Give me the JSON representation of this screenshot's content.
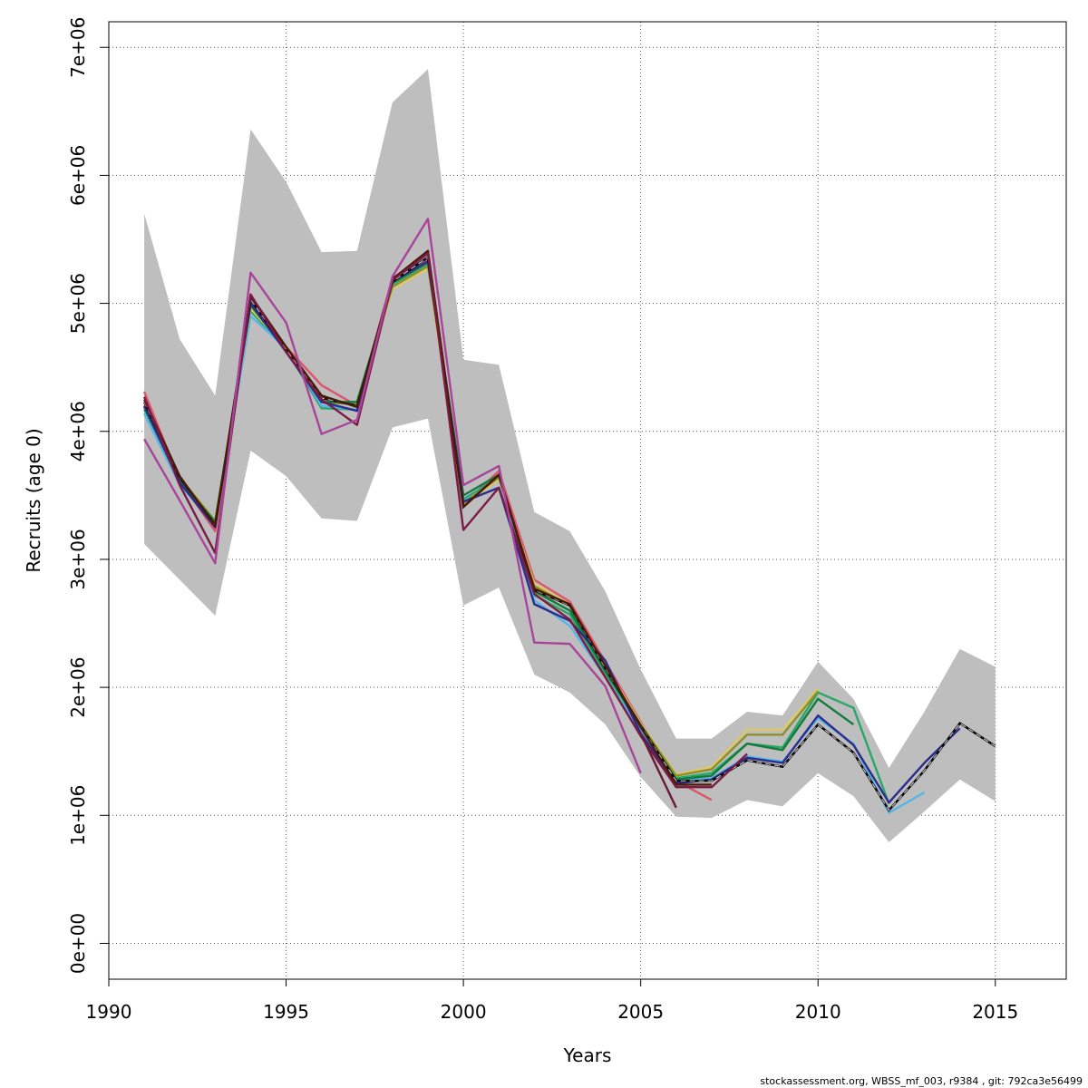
{
  "chart_data": {
    "type": "line",
    "xlabel": "Years",
    "ylabel": "Recruits (age 0)",
    "xlim": [
      1990,
      2017
    ],
    "ylim": [
      -280000,
      7200000
    ],
    "x_ticks": [
      1990,
      1995,
      2000,
      2005,
      2010,
      2015
    ],
    "x_tick_labels": [
      "1990",
      "1995",
      "2000",
      "2005",
      "2010",
      "2015"
    ],
    "y_ticks": [
      0,
      1000000,
      2000000,
      3000000,
      4000000,
      5000000,
      6000000,
      7000000
    ],
    "y_tick_labels": [
      "0e+00",
      "1e+06",
      "2e+06",
      "3e+06",
      "4e+06",
      "5e+06",
      "6e+06",
      "7e+06"
    ],
    "grid": true,
    "band": {
      "color": "#bebebe",
      "x": [
        1991,
        1992,
        1993,
        1994,
        1995,
        1996,
        1997,
        1998,
        1999,
        2000,
        2001,
        2002,
        2003,
        2004,
        2005,
        2006,
        2007,
        2008,
        2009,
        2010,
        2011,
        2012,
        2013,
        2014,
        2015
      ],
      "upper": [
        5700000,
        4720000,
        4280000,
        6360000,
        5950000,
        5400000,
        5410000,
        6570000,
        6830000,
        4560000,
        4520000,
        3370000,
        3220000,
        2750000,
        2140000,
        1600000,
        1600000,
        1810000,
        1780000,
        2200000,
        1910000,
        1370000,
        1810000,
        2300000,
        2160000
      ],
      "lower": [
        3120000,
        2840000,
        2560000,
        3850000,
        3650000,
        3320000,
        3300000,
        4030000,
        4100000,
        2640000,
        2780000,
        2100000,
        1960000,
        1710000,
        1300000,
        990000,
        980000,
        1120000,
        1070000,
        1330000,
        1150000,
        790000,
        1030000,
        1280000,
        1110000
      ]
    },
    "series": [
      {
        "color": "#df536b",
        "x": [
          1991,
          1992,
          1993,
          1994,
          1995,
          1996,
          1997,
          1998,
          1999,
          2000,
          2001,
          2002,
          2003,
          2004,
          2005,
          2006,
          2007
        ],
        "values": [
          4310000,
          3620000,
          3220000,
          5030000,
          4660000,
          4360000,
          4200000,
          5200000,
          5350000,
          3430000,
          3690000,
          2840000,
          2670000,
          2200000,
          1730000,
          1270000,
          1120000
        ]
      },
      {
        "color": "#28a868",
        "x": [
          1991,
          1992,
          1993,
          1994,
          1995,
          1996,
          1997,
          1998,
          1999,
          2000,
          2001,
          2002,
          2003,
          2004,
          2005,
          2006,
          2007,
          2008,
          2009,
          2010,
          2011,
          2012
        ],
        "values": [
          4170000,
          3600000,
          3280000,
          4940000,
          4640000,
          4180000,
          4170000,
          5150000,
          5310000,
          3470000,
          3640000,
          2720000,
          2570000,
          2110000,
          1680000,
          1290000,
          1330000,
          1560000,
          1530000,
          1960000,
          1840000,
          1090000
        ]
      },
      {
        "color": "#57b5e8",
        "x": [
          1991,
          1992,
          1993,
          1994,
          1995,
          1996,
          1997,
          1998,
          1999,
          2000,
          2001,
          2002,
          2003,
          2004,
          2005,
          2006,
          2007,
          2008,
          2009,
          2010,
          2011,
          2012,
          2013
        ],
        "values": [
          4140000,
          3580000,
          3290000,
          4900000,
          4650000,
          4200000,
          4170000,
          5160000,
          5320000,
          3450000,
          3630000,
          2680000,
          2480000,
          2080000,
          1660000,
          1270000,
          1290000,
          1460000,
          1420000,
          1760000,
          1560000,
          1020000,
          1180000
        ]
      },
      {
        "color": "#dac86a",
        "x": [
          1991,
          1992,
          1993,
          1994,
          1995,
          1996,
          1997,
          1998,
          1999,
          2000,
          2001,
          2002,
          2003,
          2004,
          2005,
          2006,
          2007,
          2008,
          2009,
          2010
        ],
        "values": [
          4220000,
          3640000,
          3300000,
          4960000,
          4650000,
          4240000,
          4220000,
          5110000,
          5270000,
          3420000,
          3630000,
          2810000,
          2650000,
          2170000,
          1720000,
          1320000,
          1380000,
          1670000,
          1670000,
          1990000
        ]
      },
      {
        "color": "#8e8f28",
        "x": [
          1991,
          1992,
          1993,
          1994,
          1995,
          1996,
          1997,
          1998,
          1999,
          2000,
          2001,
          2002,
          2003,
          2004,
          2005,
          2006,
          2007,
          2008,
          2009,
          2010
        ],
        "values": [
          4200000,
          3640000,
          3300000,
          4980000,
          4640000,
          4230000,
          4210000,
          5130000,
          5290000,
          3440000,
          3640000,
          2790000,
          2640000,
          2160000,
          1710000,
          1310000,
          1360000,
          1630000,
          1630000,
          1970000
        ]
      },
      {
        "color": "#127a3c",
        "x": [
          1991,
          1992,
          1993,
          1994,
          1995,
          1996,
          1997,
          1998,
          1999,
          2000,
          2001,
          2002,
          2003,
          2004,
          2005,
          2006,
          2007,
          2008,
          2009,
          2010,
          2011
        ],
        "values": [
          4190000,
          3620000,
          3290000,
          4990000,
          4640000,
          4230000,
          4230000,
          5160000,
          5320000,
          3500000,
          3660000,
          2750000,
          2600000,
          2130000,
          1700000,
          1280000,
          1310000,
          1560000,
          1510000,
          1910000,
          1710000
        ]
      },
      {
        "color": "#2c2c8c",
        "x": [
          1991,
          1992,
          1993,
          1994,
          1995,
          1996,
          1997,
          1998,
          1999,
          2000,
          2001,
          2002,
          2003,
          2004,
          2005,
          2006,
          2007,
          2008,
          2009,
          2010,
          2011,
          2012,
          2013,
          2014
        ],
        "values": [
          4200000,
          3600000,
          3250000,
          5000000,
          4620000,
          4230000,
          4160000,
          5170000,
          5330000,
          3450000,
          3560000,
          2650000,
          2520000,
          2210000,
          1640000,
          1250000,
          1280000,
          1450000,
          1410000,
          1780000,
          1550000,
          1100000,
          1410000,
          1680000
        ]
      },
      {
        "color": "#222222",
        "dash": "6 4",
        "x": [
          1991,
          1992,
          1993,
          1994,
          1995,
          1996,
          1997,
          1998,
          1999,
          2000,
          2001,
          2002,
          2003,
          2004,
          2005,
          2006,
          2007,
          2008,
          2009,
          2010,
          2011,
          2012,
          2013,
          2014,
          2015
        ],
        "values": [
          4230000,
          3640000,
          3270000,
          5030000,
          4640000,
          4260000,
          4200000,
          5170000,
          5360000,
          3410000,
          3660000,
          2760000,
          2640000,
          2150000,
          1700000,
          1270000,
          1270000,
          1430000,
          1380000,
          1710000,
          1490000,
          1040000,
          1350000,
          1720000,
          1540000
        ]
      },
      {
        "color": "#4a1a08",
        "x": [
          1991,
          1992,
          1993,
          1994,
          1995,
          1996,
          1997,
          1998,
          1999,
          2000,
          2001,
          2002,
          2003,
          2004,
          2005,
          2006,
          2007
        ],
        "values": [
          4250000,
          3650000,
          3260000,
          5060000,
          4660000,
          4280000,
          4190000,
          5190000,
          5410000,
          3410000,
          3660000,
          2770000,
          2650000,
          2170000,
          1690000,
          1240000,
          1240000
        ]
      },
      {
        "color": "#7a1a45",
        "x": [
          1991,
          1992,
          1993,
          1994,
          1995,
          1996,
          1997,
          1998,
          1999,
          2000,
          2001,
          2002,
          2003,
          2004,
          2005,
          2006,
          2007,
          2008
        ],
        "values": [
          4270000,
          3580000,
          3050000,
          5070000,
          4620000,
          4250000,
          4050000,
          5180000,
          5390000,
          3230000,
          3560000,
          2730000,
          2530000,
          2080000,
          1620000,
          1220000,
          1220000,
          1480000
        ]
      },
      {
        "color": "#a8459a",
        "x": [
          1991,
          1992,
          1993,
          1994,
          1995,
          1996,
          1997,
          1998,
          1999,
          2000,
          2001,
          2002,
          2003,
          2004,
          2005
        ],
        "values": [
          3940000,
          3460000,
          2970000,
          5240000,
          4850000,
          3980000,
          4090000,
          5210000,
          5660000,
          3580000,
          3730000,
          2350000,
          2340000,
          2010000,
          1330000
        ]
      },
      {
        "color": "#6b1a35",
        "x": [
          2005,
          2006
        ],
        "values": [
          1640000,
          1060000
        ]
      }
    ]
  },
  "footer": "stockassessment.org, WBSS_mf_003, r9384 , git: 792ca3e56499"
}
